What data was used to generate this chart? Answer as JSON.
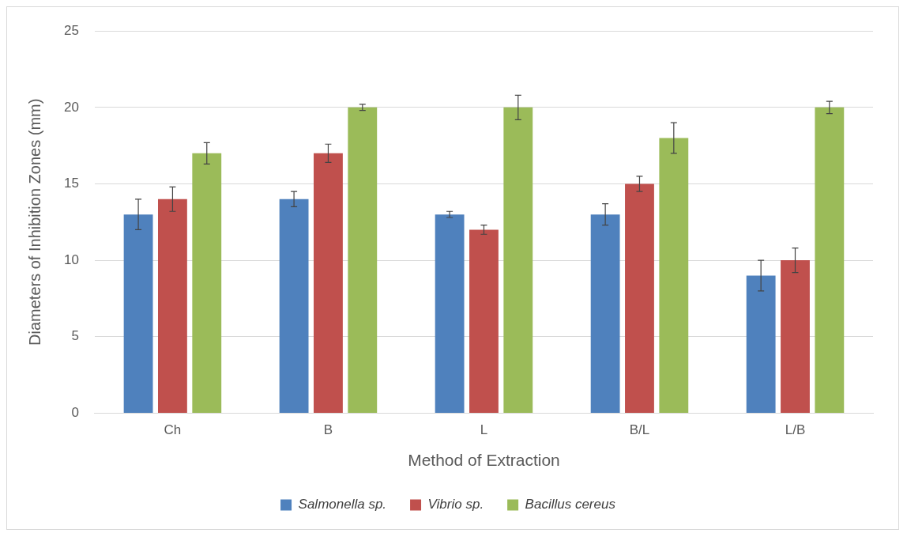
{
  "chart_data": {
    "type": "bar",
    "xlabel": "Method of Extraction",
    "ylabel": "Diameters of Inhibition Zones (mm)",
    "categories": [
      "Ch",
      "B",
      "L",
      "B/L",
      "L/B"
    ],
    "series": [
      {
        "name": "Salmonella sp.",
        "color": "#4f81bd",
        "values": [
          13,
          14,
          13,
          13,
          9
        ],
        "errors": [
          1,
          0.5,
          0.2,
          0.7,
          1
        ]
      },
      {
        "name": "Vibrio sp.",
        "color": "#c0504d",
        "values": [
          14,
          17,
          12,
          15,
          10
        ],
        "errors": [
          0.8,
          0.6,
          0.3,
          0.5,
          0.8
        ]
      },
      {
        "name": "Bacillus cereus",
        "color": "#9bbb59",
        "values": [
          17,
          20,
          20,
          18,
          20
        ],
        "errors": [
          0.7,
          0.2,
          0.8,
          1,
          0.4
        ]
      }
    ],
    "ylim": [
      0,
      25
    ],
    "yticks": [
      0,
      5,
      10,
      15,
      20,
      25
    ],
    "grid": "y",
    "legend": "bottom"
  }
}
